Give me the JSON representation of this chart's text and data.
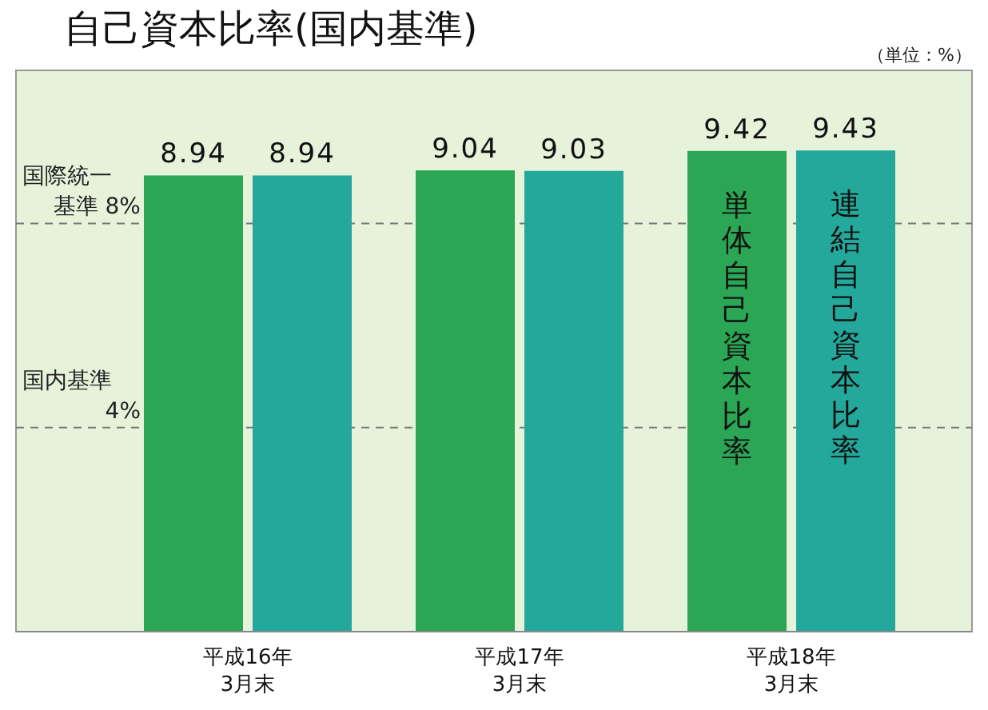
{
  "chart_data": {
    "type": "bar",
    "title": "自己資本比率(国内基準)",
    "annotations": [
      "（単位：%）"
    ],
    "categories": [
      "平成16年\n3月末",
      "平成17年\n3月末",
      "平成18年\n3月末"
    ],
    "series": [
      {
        "name": "単体自己資本比率",
        "color": "#2aa655",
        "values": [
          8.94,
          9.04,
          9.42
        ]
      },
      {
        "name": "連結自己資本比率",
        "color": "#23a89b",
        "values": [
          8.94,
          9.03,
          9.43
        ]
      }
    ],
    "ylim": [
      0,
      11
    ],
    "data_labels": true,
    "ref_lines": [
      {
        "axis": "y",
        "value": 8,
        "label": "国際統一基準 8%",
        "color": "#777777",
        "line_style": "dashed"
      },
      {
        "axis": "y",
        "value": 4,
        "label": "国内基準4%",
        "color": "#777777",
        "line_style": "dashed"
      }
    ]
  }
}
